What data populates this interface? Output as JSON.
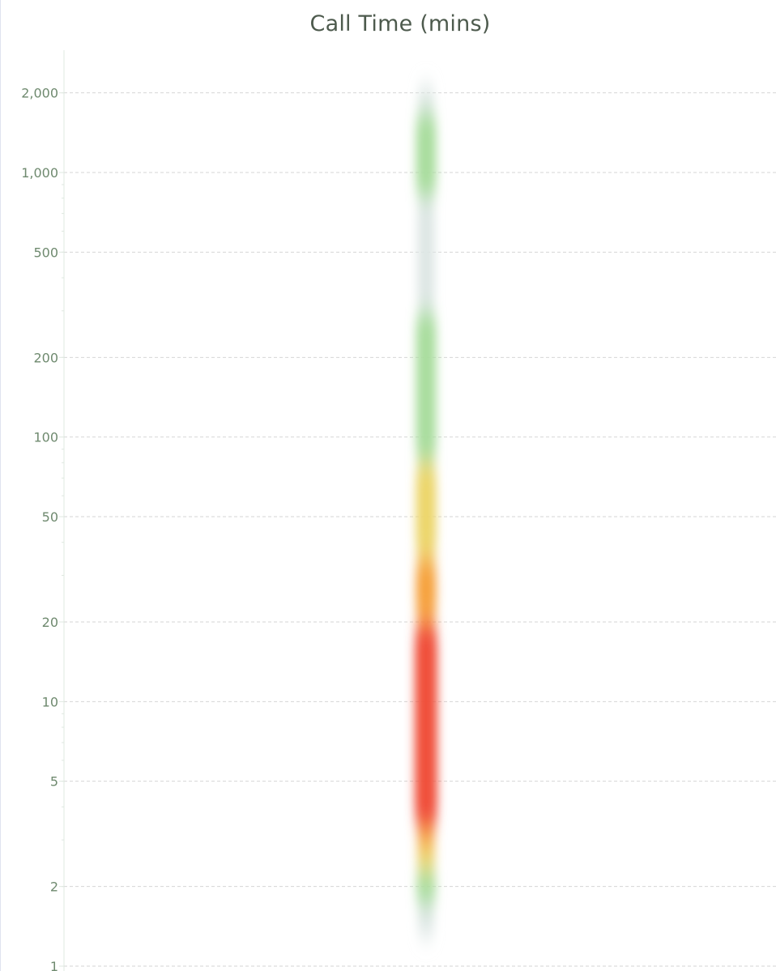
{
  "chart_data": {
    "type": "heatmap",
    "title": "Call Time (mins)",
    "xlabel": "",
    "ylabel": "",
    "yscale": "log",
    "ylim": [
      1,
      2900
    ],
    "y_ticks": [
      {
        "value": 1,
        "label": "1"
      },
      {
        "value": 2,
        "label": "2"
      },
      {
        "value": 5,
        "label": "5"
      },
      {
        "value": 10,
        "label": "10"
      },
      {
        "value": 20,
        "label": "20"
      },
      {
        "value": 50,
        "label": "50"
      },
      {
        "value": 100,
        "label": "100"
      },
      {
        "value": 200,
        "label": "200"
      },
      {
        "value": 500,
        "label": "500"
      },
      {
        "value": 1000,
        "label": "1,000"
      },
      {
        "value": 2000,
        "label": "2,000"
      }
    ],
    "grid": true,
    "colors": {
      "high": "#f0503a",
      "mid_high": "#f6a23c",
      "mid": "#ecd66a",
      "low": "#a9dd9e",
      "faint": "#dde6e4",
      "tick_label": "#6f8a6f",
      "grid": "#d6d6d6",
      "axis": "#dfe8e0"
    },
    "density_bands": [
      {
        "from": 1.3,
        "to": 1.7,
        "color": "faint"
      },
      {
        "from": 1.7,
        "to": 2.3,
        "color": "low"
      },
      {
        "from": 2.3,
        "to": 2.8,
        "color": "mid"
      },
      {
        "from": 2.8,
        "to": 3.3,
        "color": "mid_high"
      },
      {
        "from": 3.3,
        "to": 20,
        "color": "high"
      },
      {
        "from": 20,
        "to": 35,
        "color": "mid_high"
      },
      {
        "from": 35,
        "to": 80,
        "color": "mid"
      },
      {
        "from": 80,
        "to": 300,
        "color": "low"
      },
      {
        "from": 300,
        "to": 800,
        "color": "faint"
      },
      {
        "from": 800,
        "to": 1700,
        "color": "low"
      },
      {
        "from": 1700,
        "to": 2100,
        "color": "faint"
      }
    ]
  }
}
